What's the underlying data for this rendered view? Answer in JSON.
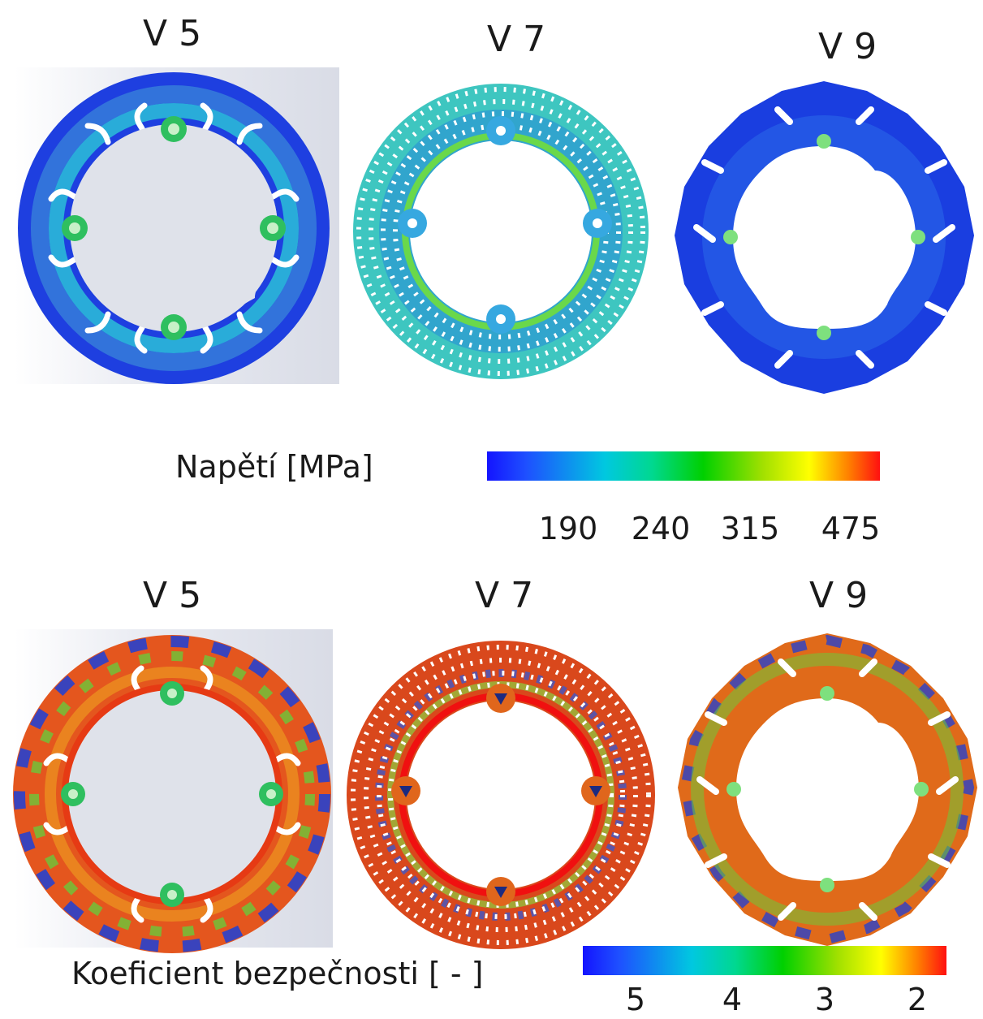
{
  "top_row": {
    "labels": [
      "V 5",
      "V 7",
      "V 9"
    ],
    "legend": {
      "title": "Napětí [MPa]",
      "ticks": [
        "190",
        "240",
        "315",
        "475"
      ],
      "colors": [
        "#1414ff",
        "#00c8e0",
        "#00d000",
        "#a0e000",
        "#ffff00",
        "#ff8000",
        "#ff1010"
      ]
    }
  },
  "bottom_row": {
    "labels": [
      "V 5",
      "V 7",
      "V 9"
    ],
    "legend": {
      "title": "Koeficient bezpečnosti [ - ]",
      "ticks": [
        "5",
        "4",
        "3",
        "2"
      ],
      "colors": [
        "#1414ff",
        "#00c8e0",
        "#00d000",
        "#a0e000",
        "#ffff00",
        "#ff8000",
        "#ff1010"
      ]
    }
  },
  "palette": {
    "stress_base": "#1e50e6",
    "stress_ring": "#2ec8c8",
    "stress_hot": "#3ecf3e",
    "safety_base": "#e0561c",
    "safety_hot": "#f07a1a",
    "safety_cool": "#1c3fd8"
  }
}
